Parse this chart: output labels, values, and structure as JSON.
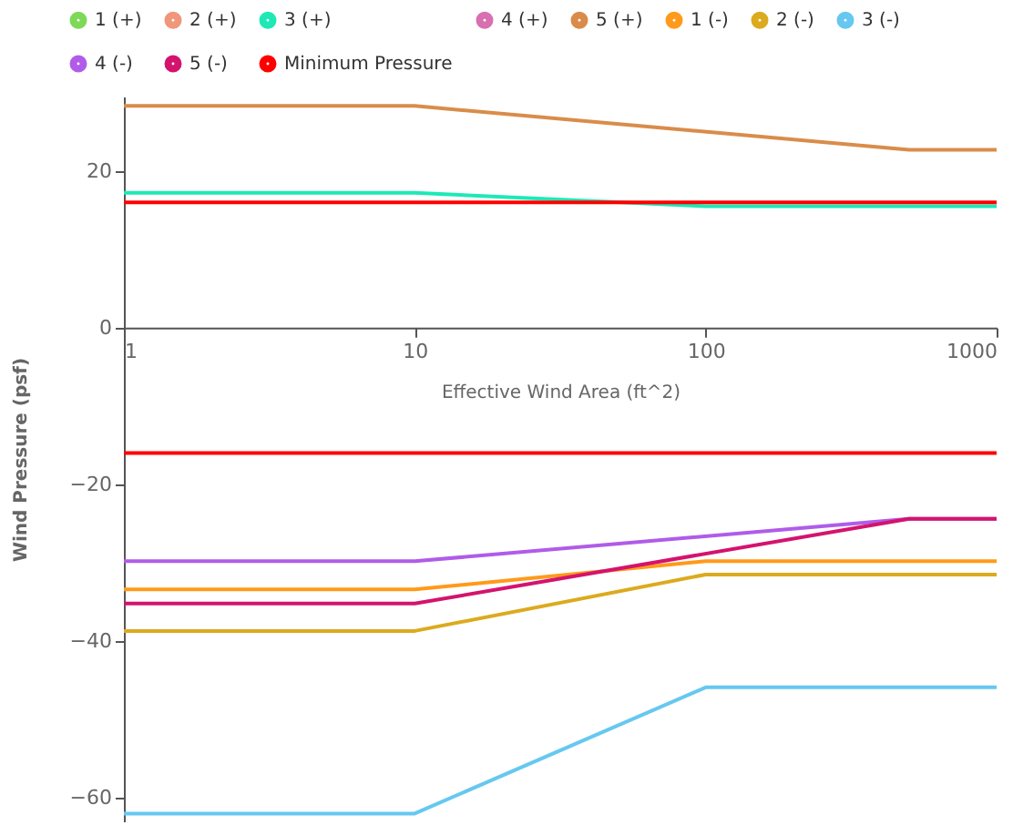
{
  "chart_data": {
    "type": "line",
    "xlabel": "Effective Wind Area (ft^2)",
    "ylabel": "Wind Pressure (psf)",
    "log": "x",
    "xlim": [
      1,
      1000
    ],
    "xticks": [
      1,
      10,
      100,
      1000
    ],
    "ylim": [
      -63,
      29.5
    ],
    "yticks": [
      20,
      0,
      -20,
      -40,
      -60
    ],
    "grid": false,
    "legend": "top",
    "line_style": "solid",
    "series": [
      {
        "name": "1 (+)",
        "color": "#7ed957"
      },
      {
        "name": "2 (+)",
        "color": "#f0967a"
      },
      {
        "name": "3 (+)",
        "color": "#1de9b6",
        "x": [
          1,
          10,
          100,
          1000
        ],
        "values": [
          17.2,
          17.2,
          15.5,
          15.5
        ]
      },
      {
        "name": "4 (+)",
        "color": "#d86fb0"
      },
      {
        "name": "5 (+)",
        "color": "#d98c4a",
        "x": [
          1,
          10,
          500,
          1000
        ],
        "values": [
          28.3,
          28.3,
          22.7,
          22.7
        ]
      },
      {
        "name": "1 (-)",
        "color": "#ff9a1a",
        "x": [
          1,
          10,
          100,
          1000
        ],
        "values": [
          -33.4,
          -33.4,
          -29.8,
          -29.8
        ]
      },
      {
        "name": "2 (-)",
        "color": "#dcaa1e",
        "x": [
          1,
          10,
          100,
          1000
        ],
        "values": [
          -38.7,
          -38.7,
          -31.5,
          -31.5
        ]
      },
      {
        "name": "3 (-)",
        "color": "#66c8f0",
        "x": [
          1,
          10,
          100,
          1000
        ],
        "values": [
          -62.0,
          -62.0,
          -45.9,
          -45.9
        ]
      },
      {
        "name": "4 (-)",
        "color": "#b05ce8",
        "x": [
          1,
          10,
          500,
          1000
        ],
        "values": [
          -29.8,
          -29.8,
          -24.4,
          -24.4
        ]
      },
      {
        "name": "5 (-)",
        "color": "#d4136e",
        "x": [
          1,
          10,
          500,
          1000
        ],
        "values": [
          -35.2,
          -35.2,
          -24.4,
          -24.4
        ]
      },
      {
        "name": "Minimum Pressure",
        "color": "#ff0000",
        "x": [
          1,
          1000
        ],
        "values": [
          16,
          16
        ]
      },
      {
        "color": "#ff0000",
        "x": [
          1,
          1000
        ],
        "values": [
          -16,
          -16
        ]
      }
    ]
  }
}
